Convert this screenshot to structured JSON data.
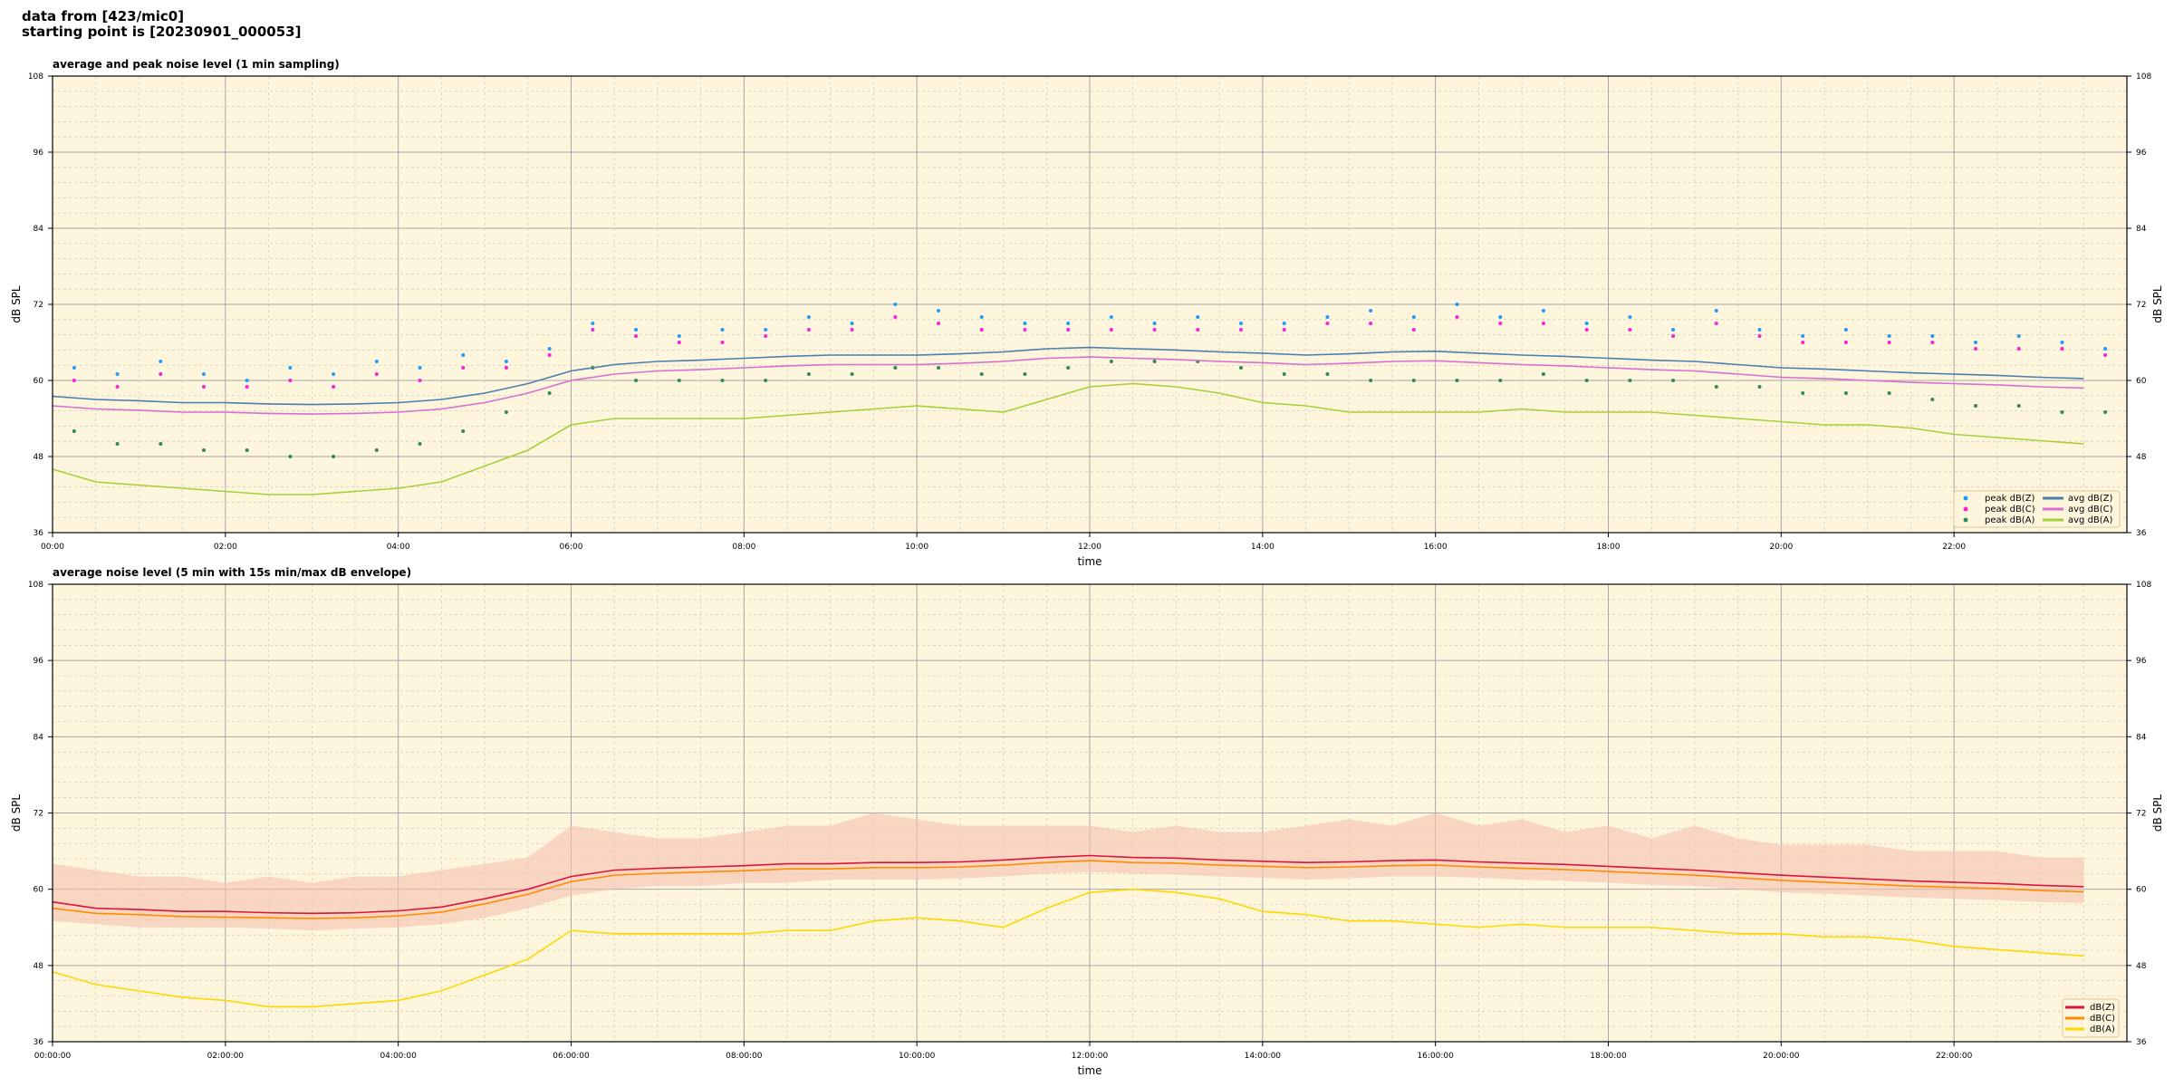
{
  "header": {
    "line1": "data from [423/mic0]",
    "line2": "starting point is [20230901_000053]"
  },
  "colors": {
    "bg": "#fdf5dc",
    "peakZ": "#1f9bff",
    "peakC": "#ff1fd6",
    "peakA": "#2e8b57",
    "avgZ": "#4a7fb0",
    "avgC": "#d86fd0",
    "avgA": "#a4d13a",
    "dbZ": "#dc143c",
    "dbC": "#ff8c00",
    "dbA": "#ffd700",
    "envelope": "#f7c2b0"
  },
  "chart_data": [
    {
      "type": "line",
      "title": "average and peak noise level (1 min sampling)",
      "xlabel": "time",
      "ylabel": "dB SPL",
      "ylim": [
        36,
        108
      ],
      "xlim_hours": [
        0,
        24
      ],
      "yticks": [
        "36",
        "48",
        "60",
        "72",
        "84",
        "96",
        "108"
      ],
      "xticks": [
        "00:00",
        "02:00",
        "04:00",
        "06:00",
        "08:00",
        "10:00",
        "12:00",
        "14:00",
        "16:00",
        "18:00",
        "20:00",
        "22:00"
      ],
      "grid": true,
      "legend": "bottom-right",
      "x_hours_step": 0.5,
      "series": [
        {
          "name": "peak dB(Z)",
          "kind": "scatter",
          "color": "#1f9bff",
          "values": [
            62,
            61,
            63,
            61,
            60,
            62,
            61,
            63,
            62,
            64,
            63,
            65,
            69,
            68,
            67,
            68,
            68,
            70,
            69,
            72,
            71,
            70,
            69,
            69,
            70,
            69,
            70,
            69,
            69,
            70,
            71,
            70,
            72,
            70,
            71,
            69,
            70,
            68,
            71,
            68,
            67,
            68,
            67,
            67,
            66,
            67,
            66,
            65
          ]
        },
        {
          "name": "peak dB(C)",
          "kind": "scatter",
          "color": "#ff1fd6",
          "values": [
            60,
            59,
            61,
            59,
            59,
            60,
            59,
            61,
            60,
            62,
            62,
            64,
            68,
            67,
            66,
            66,
            67,
            68,
            68,
            70,
            69,
            68,
            68,
            68,
            68,
            68,
            68,
            68,
            68,
            69,
            69,
            68,
            70,
            69,
            69,
            68,
            68,
            67,
            69,
            67,
            66,
            66,
            66,
            66,
            65,
            65,
            65,
            64
          ]
        },
        {
          "name": "peak dB(A)",
          "kind": "scatter",
          "color": "#2e8b57",
          "values": [
            52,
            50,
            50,
            49,
            49,
            48,
            48,
            49,
            50,
            52,
            55,
            58,
            62,
            60,
            60,
            60,
            60,
            61,
            61,
            62,
            62,
            61,
            61,
            62,
            63,
            63,
            63,
            62,
            61,
            61,
            60,
            60,
            60,
            60,
            61,
            60,
            60,
            60,
            59,
            59,
            58,
            58,
            58,
            57,
            56,
            56,
            55,
            55
          ]
        },
        {
          "name": "avg dB(Z)",
          "kind": "line",
          "color": "#4a7fb0",
          "values": [
            57.5,
            57,
            56.8,
            56.5,
            56.5,
            56.3,
            56.2,
            56.3,
            56.5,
            57,
            58,
            59.5,
            61.5,
            62.5,
            63,
            63.2,
            63.5,
            63.8,
            64,
            64,
            64,
            64.2,
            64.5,
            65,
            65.2,
            65,
            64.8,
            64.5,
            64.3,
            64,
            64.2,
            64.5,
            64.6,
            64.3,
            64,
            63.8,
            63.5,
            63.2,
            63,
            62.5,
            62,
            61.8,
            61.5,
            61.2,
            61,
            60.8,
            60.5,
            60.3
          ]
        },
        {
          "name": "avg dB(C)",
          "kind": "line",
          "color": "#d86fd0",
          "values": [
            56,
            55.5,
            55.3,
            55,
            55,
            54.8,
            54.7,
            54.8,
            55,
            55.5,
            56.5,
            58,
            60,
            61,
            61.5,
            61.7,
            62,
            62.3,
            62.5,
            62.5,
            62.5,
            62.7,
            63,
            63.5,
            63.7,
            63.5,
            63.3,
            63,
            62.8,
            62.5,
            62.7,
            63,
            63.1,
            62.8,
            62.5,
            62.3,
            62,
            61.7,
            61.5,
            61,
            60.5,
            60.3,
            60,
            59.7,
            59.5,
            59.3,
            59,
            58.8
          ]
        },
        {
          "name": "avg dB(A)",
          "kind": "line",
          "color": "#a4d13a",
          "values": [
            46,
            44,
            43.5,
            43,
            42.5,
            42,
            42,
            42.5,
            43,
            44,
            46.5,
            49,
            53,
            54,
            54,
            54,
            54,
            54.5,
            55,
            55.5,
            56,
            55.5,
            55,
            57,
            59,
            59.5,
            59,
            58,
            56.5,
            56,
            55,
            55,
            55,
            55,
            55.5,
            55,
            55,
            55,
            54.5,
            54,
            53.5,
            53,
            53,
            52.5,
            51.5,
            51,
            50.5,
            50
          ]
        }
      ]
    },
    {
      "type": "line",
      "title": "average noise level (5 min with 15s min/max dB envelope)",
      "xlabel": "time",
      "ylabel": "dB SPL",
      "ylim": [
        36,
        108
      ],
      "xlim_hours": [
        0,
        24
      ],
      "yticks": [
        "36",
        "48",
        "60",
        "72",
        "84",
        "96",
        "108"
      ],
      "xticks": [
        "00:00:00",
        "02:00:00",
        "04:00:00",
        "06:00:00",
        "08:00:00",
        "10:00:00",
        "12:00:00",
        "14:00:00",
        "16:00:00",
        "18:00:00",
        "20:00:00",
        "22:00:00"
      ],
      "grid": true,
      "legend": "bottom-right",
      "x_hours_step": 0.5,
      "envelope": {
        "max": [
          64,
          63,
          62,
          62,
          61,
          62,
          61,
          62,
          62,
          63,
          64,
          65,
          70,
          69,
          68,
          68,
          69,
          70,
          70,
          72,
          71,
          70,
          70,
          70,
          70,
          69,
          70,
          69,
          69,
          70,
          71,
          70,
          72,
          70,
          71,
          69,
          70,
          68,
          70,
          68,
          67,
          67,
          67,
          66,
          66,
          66,
          65,
          65
        ],
        "min": [
          55,
          54.5,
          54,
          54,
          54,
          53.8,
          53.5,
          53.8,
          54,
          54.5,
          55.5,
          57,
          59,
          60,
          60.5,
          60.5,
          61,
          61,
          61.5,
          61.5,
          61.5,
          61.7,
          62,
          62.5,
          62.7,
          62.5,
          62.3,
          62,
          61.8,
          61.5,
          61.7,
          62,
          62,
          61.8,
          61.5,
          61.3,
          61,
          60.7,
          60.5,
          60,
          59.5,
          59.3,
          59,
          58.7,
          58.5,
          58.3,
          58,
          57.8
        ]
      },
      "series": [
        {
          "name": "dB(Z)",
          "color": "#dc143c",
          "values": [
            58,
            57,
            56.8,
            56.5,
            56.5,
            56.3,
            56.2,
            56.3,
            56.6,
            57.2,
            58.5,
            60,
            62,
            63,
            63.3,
            63.5,
            63.7,
            64,
            64,
            64.2,
            64.2,
            64.3,
            64.6,
            65,
            65.3,
            65,
            64.9,
            64.6,
            64.4,
            64.2,
            64.3,
            64.5,
            64.6,
            64.3,
            64.1,
            63.9,
            63.6,
            63.3,
            63,
            62.6,
            62.2,
            61.9,
            61.6,
            61.3,
            61.1,
            60.9,
            60.6,
            60.4
          ]
        },
        {
          "name": "dB(C)",
          "color": "#ff8c00",
          "values": [
            57,
            56.2,
            56,
            55.7,
            55.6,
            55.5,
            55.4,
            55.5,
            55.8,
            56.4,
            57.7,
            59.2,
            61.2,
            62.2,
            62.5,
            62.7,
            62.9,
            63.2,
            63.2,
            63.4,
            63.4,
            63.5,
            63.8,
            64.2,
            64.5,
            64.2,
            64.1,
            63.8,
            63.6,
            63.4,
            63.5,
            63.7,
            63.8,
            63.5,
            63.3,
            63.1,
            62.8,
            62.5,
            62.2,
            61.8,
            61.4,
            61.1,
            60.8,
            60.5,
            60.3,
            60.1,
            59.8,
            59.6
          ]
        },
        {
          "name": "dB(A)",
          "color": "#ffd700",
          "values": [
            47,
            45,
            44,
            43,
            42.5,
            41.5,
            41.5,
            42,
            42.5,
            44,
            46.5,
            49,
            53.5,
            53,
            53,
            53,
            53,
            53.5,
            53.5,
            55,
            55.5,
            55,
            54,
            57,
            59.5,
            60,
            59.5,
            58.5,
            56.5,
            56,
            55,
            55,
            54.5,
            54,
            54.5,
            54,
            54,
            54,
            53.5,
            53,
            53,
            52.5,
            52.5,
            52,
            51,
            50.5,
            50,
            49.5
          ]
        }
      ]
    }
  ]
}
